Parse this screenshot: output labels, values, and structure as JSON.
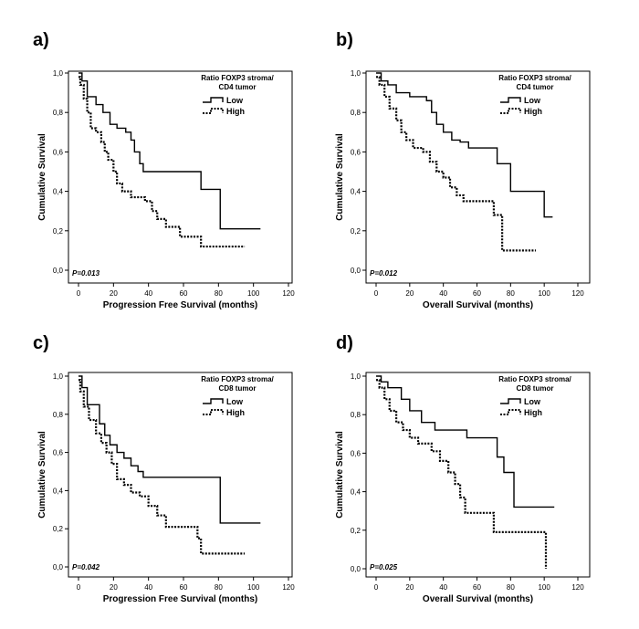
{
  "chart_data": [
    {
      "type": "line",
      "subtype": "kaplan-meier",
      "panel_label": "a)",
      "xlabel": "Progression Free Survival (months)",
      "ylabel": "Cumulative Survival",
      "xlim": [
        0,
        120
      ],
      "ylim": [
        0,
        1.0
      ],
      "x_ticks": [
        "0",
        "20",
        "40",
        "60",
        "80",
        "100",
        "120"
      ],
      "y_ticks": [
        "0,0",
        "0,2",
        "0,4",
        "0,6",
        "0,8",
        "1,0"
      ],
      "legend_title": [
        "Ratio FOXP3 stroma/",
        "CD4 tumor"
      ],
      "legend_placement": "top-right",
      "p_value": "P=0.013",
      "series": [
        {
          "name": "Low",
          "style": "solid",
          "x": [
            0,
            2,
            5,
            10,
            14,
            18,
            22,
            27,
            30,
            32,
            35,
            37,
            70,
            81,
            104
          ],
          "y": [
            1.0,
            0.96,
            0.88,
            0.84,
            0.8,
            0.74,
            0.72,
            0.7,
            0.66,
            0.6,
            0.54,
            0.5,
            0.41,
            0.21,
            0.21
          ]
        },
        {
          "name": "High",
          "style": "dotted",
          "x": [
            0,
            1,
            3,
            5,
            7,
            10,
            13,
            15,
            17,
            20,
            22,
            25,
            30,
            38,
            42,
            45,
            50,
            58,
            70,
            95
          ],
          "y": [
            0.98,
            0.94,
            0.87,
            0.8,
            0.72,
            0.7,
            0.65,
            0.6,
            0.56,
            0.5,
            0.44,
            0.4,
            0.37,
            0.35,
            0.3,
            0.26,
            0.22,
            0.17,
            0.12,
            0.12
          ]
        }
      ]
    },
    {
      "type": "line",
      "subtype": "kaplan-meier",
      "panel_label": "b)",
      "xlabel": "Overall Survival (months)",
      "ylabel": "Cumulative Survival",
      "xlim": [
        0,
        120
      ],
      "ylim": [
        0,
        1.0
      ],
      "x_ticks": [
        "0",
        "20",
        "40",
        "60",
        "80",
        "100",
        "120"
      ],
      "y_ticks": [
        "0,0",
        "0,2",
        "0,4",
        "0,6",
        "0,8",
        "1,0"
      ],
      "legend_title": [
        "Ratio FOXP3 stroma/",
        "CD4 tumor"
      ],
      "legend_placement": "top-right",
      "p_value": "P=0.012",
      "series": [
        {
          "name": "Low",
          "style": "solid",
          "x": [
            0,
            3,
            7,
            12,
            20,
            30,
            33,
            36,
            40,
            45,
            50,
            55,
            72,
            80,
            100,
            105
          ],
          "y": [
            1.0,
            0.96,
            0.94,
            0.9,
            0.88,
            0.86,
            0.8,
            0.74,
            0.7,
            0.66,
            0.65,
            0.62,
            0.54,
            0.4,
            0.27,
            0.27
          ]
        },
        {
          "name": "High",
          "style": "dotted",
          "x": [
            0,
            2,
            5,
            8,
            12,
            15,
            18,
            22,
            28,
            32,
            36,
            40,
            44,
            48,
            52,
            70,
            75,
            95
          ],
          "y": [
            0.98,
            0.94,
            0.88,
            0.82,
            0.76,
            0.7,
            0.66,
            0.62,
            0.6,
            0.55,
            0.5,
            0.47,
            0.42,
            0.38,
            0.35,
            0.28,
            0.1,
            0.1
          ]
        }
      ]
    },
    {
      "type": "line",
      "subtype": "kaplan-meier",
      "panel_label": "c)",
      "xlabel": "Progression Free Survival (months)",
      "ylabel": "Cumulative Survival",
      "xlim": [
        0,
        120
      ],
      "ylim": [
        0,
        1.0
      ],
      "x_ticks": [
        "0",
        "20",
        "40",
        "60",
        "80",
        "100",
        "120"
      ],
      "y_ticks": [
        "0,0",
        "0,2",
        "0,4",
        "0,6",
        "0,8",
        "1,0"
      ],
      "legend_title": [
        "Ratio FOXP3 stroma/",
        "CD8 tumor"
      ],
      "legend_placement": "top-right",
      "p_value": "P=0.042",
      "series": [
        {
          "name": "Low",
          "style": "solid",
          "x": [
            0,
            2,
            5,
            12,
            15,
            18,
            22,
            26,
            30,
            34,
            37,
            81,
            104
          ],
          "y": [
            1.0,
            0.94,
            0.85,
            0.75,
            0.69,
            0.64,
            0.6,
            0.57,
            0.53,
            0.5,
            0.47,
            0.23,
            0.23
          ]
        },
        {
          "name": "High",
          "style": "dotted",
          "x": [
            0,
            1,
            3,
            6,
            10,
            13,
            16,
            19,
            22,
            26,
            30,
            35,
            40,
            45,
            50,
            68,
            70,
            95
          ],
          "y": [
            0.98,
            0.92,
            0.84,
            0.77,
            0.7,
            0.65,
            0.6,
            0.54,
            0.46,
            0.43,
            0.39,
            0.37,
            0.32,
            0.27,
            0.21,
            0.15,
            0.07,
            0.07
          ]
        }
      ]
    },
    {
      "type": "line",
      "subtype": "kaplan-meier",
      "panel_label": "d)",
      "xlabel": "Overall Survival (months)",
      "ylabel": "Cumulative Survival",
      "xlim": [
        0,
        120
      ],
      "ylim": [
        0,
        1.0
      ],
      "x_ticks": [
        "0",
        "20",
        "40",
        "60",
        "80",
        "100",
        "120"
      ],
      "y_ticks": [
        "0,0",
        "0,2",
        "0,4",
        "0,6",
        "0,8",
        "1,0"
      ],
      "legend_title": [
        "Ratio FOXP3 stroma/",
        "CD8 tumor"
      ],
      "legend_placement": "top-right",
      "p_value": "P=0.025",
      "series": [
        {
          "name": "Low",
          "style": "solid",
          "x": [
            0,
            3,
            7,
            15,
            20,
            27,
            35,
            54,
            72,
            76,
            82,
            106
          ],
          "y": [
            1.0,
            0.97,
            0.94,
            0.88,
            0.82,
            0.76,
            0.72,
            0.68,
            0.58,
            0.5,
            0.32,
            0.32
          ]
        },
        {
          "name": "High",
          "style": "dotted",
          "x": [
            0,
            2,
            5,
            8,
            12,
            16,
            20,
            25,
            33,
            38,
            43,
            47,
            50,
            53,
            70,
            100,
            101
          ],
          "y": [
            0.98,
            0.94,
            0.88,
            0.82,
            0.76,
            0.72,
            0.68,
            0.65,
            0.61,
            0.56,
            0.5,
            0.44,
            0.37,
            0.29,
            0.19,
            0.19,
            0.0
          ]
        }
      ]
    }
  ]
}
